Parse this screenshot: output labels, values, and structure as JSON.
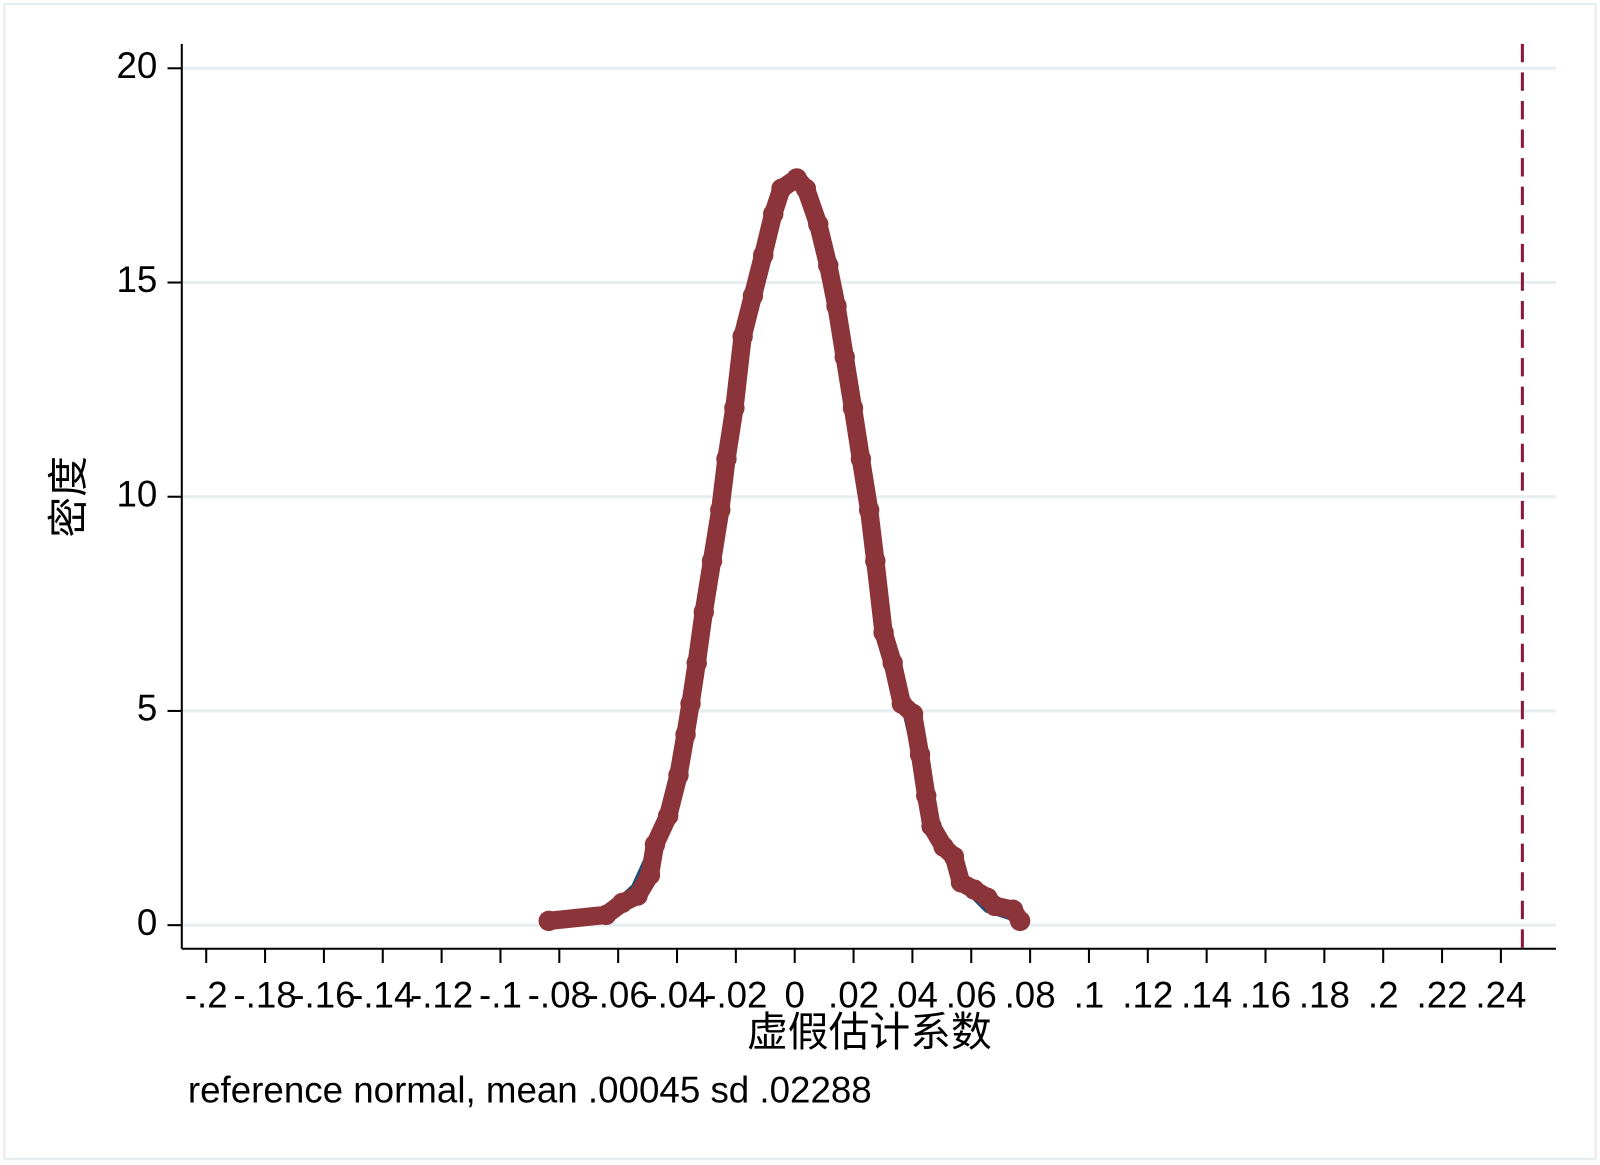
{
  "chart_data": {
    "type": "kdensity",
    "x_label": "虚假估计系数",
    "y_label": "密度",
    "note": "reference normal, mean .00045 sd .02288",
    "xlim": [
      -0.2083,
      0.2587
    ],
    "ylim": [
      -0.55,
      20.57
    ],
    "xticks": [
      {
        "value": -0.2,
        "label": "-.2"
      },
      {
        "value": -0.18,
        "label": "-.18"
      },
      {
        "value": -0.16,
        "label": "-.16"
      },
      {
        "value": -0.14,
        "label": "-.14"
      },
      {
        "value": -0.12,
        "label": "-.12"
      },
      {
        "value": -0.1,
        "label": "-.1"
      },
      {
        "value": -0.08,
        "label": "-.08"
      },
      {
        "value": -0.06,
        "label": "-.06"
      },
      {
        "value": -0.04,
        "label": "-.04"
      },
      {
        "value": -0.02,
        "label": "-.02"
      },
      0,
      {
        "value": 0.02,
        "label": ".02"
      },
      {
        "value": 0.04,
        "label": ".04"
      },
      {
        "value": 0.06,
        "label": ".06"
      },
      {
        "value": 0.08,
        "label": ".08"
      },
      {
        "value": 0.1,
        "label": ".1"
      },
      {
        "value": 0.12,
        "label": ".12"
      },
      {
        "value": 0.14,
        "label": ".14"
      },
      {
        "value": 0.16,
        "label": ".16"
      },
      {
        "value": 0.18,
        "label": ".18"
      },
      {
        "value": 0.2,
        "label": ".2"
      },
      {
        "value": 0.22,
        "label": ".22"
      },
      {
        "value": 0.24,
        "label": ".24"
      }
    ],
    "yticks": [
      0,
      5,
      10,
      15,
      20
    ],
    "grid": true,
    "xline": {
      "value": 0.2473,
      "color": "#8a1a3c",
      "style": "dashed"
    },
    "series": [
      {
        "color": "#1f4e79",
        "style": "line",
        "x": [
          -0.085,
          -0.075,
          -0.065,
          -0.055,
          -0.045,
          -0.035,
          -0.025,
          -0.015,
          -0.005,
          0,
          0.005,
          0.015,
          0.025,
          0.035,
          0.045,
          0.055,
          0.065,
          0.077
        ],
        "values": [
          0.016,
          0.076,
          0.29,
          0.92,
          2.42,
          5.25,
          9.4,
          13.89,
          16.95,
          17.44,
          17.1,
          14.25,
          9.8,
          5.58,
          2.62,
          1.02,
          0.33,
          0.065
        ]
      },
      {
        "color": "#8b3439",
        "style": "marker-line",
        "x": [
          -0.0836,
          -0.0641,
          -0.0586,
          -0.0534,
          -0.0492,
          -0.0475,
          -0.043,
          -0.0395,
          -0.0371,
          -0.0354,
          -0.0333,
          -0.0309,
          -0.0281,
          -0.0253,
          -0.0232,
          -0.0205,
          -0.0177,
          -0.0142,
          -0.0107,
          -0.0073,
          -0.0045,
          0.0007,
          0.0038,
          0.008,
          0.0114,
          0.0142,
          0.017,
          0.0198,
          0.0225,
          0.0253,
          0.0274,
          0.0302,
          0.0333,
          0.0364,
          0.0402,
          0.0426,
          0.0447,
          0.0465,
          0.0506,
          0.0541,
          0.0565,
          0.061,
          0.0655,
          0.068,
          0.0742,
          0.0766
        ],
        "values": [
          0.1,
          0.24,
          0.52,
          0.69,
          1.17,
          1.88,
          2.55,
          3.5,
          4.45,
          5.17,
          6.12,
          7.31,
          8.5,
          9.69,
          10.88,
          12.07,
          13.74,
          14.69,
          15.64,
          16.6,
          17.19,
          17.43,
          17.19,
          16.36,
          15.4,
          14.45,
          13.26,
          12.07,
          10.88,
          9.69,
          8.5,
          6.83,
          6.12,
          5.17,
          4.93,
          3.98,
          3.02,
          2.31,
          1.83,
          1.6,
          1.0,
          0.83,
          0.64,
          0.45,
          0.36,
          0.1
        ]
      }
    ]
  }
}
